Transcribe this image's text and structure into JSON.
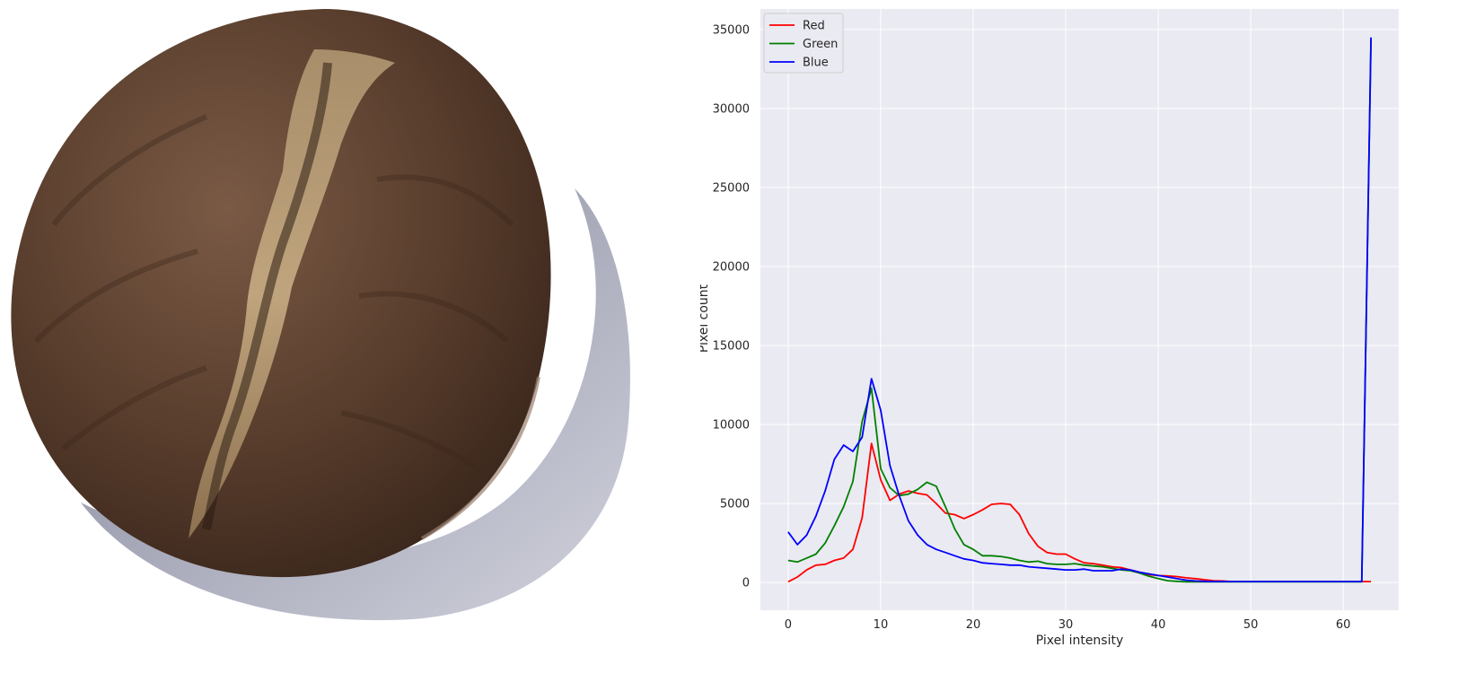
{
  "photo": {
    "subject_icon": "coffee-bean-photo"
  },
  "colors": {
    "axes_background": "#eaeaf2",
    "grid": "#ffffff",
    "red": "#ff0000",
    "green": "#008000",
    "blue": "#0000ff"
  },
  "chart_data": {
    "type": "line",
    "title": "",
    "xlabel": "Pixel intensity",
    "ylabel": "Pixel count",
    "xlim": [
      -3,
      66
    ],
    "ylim": [
      -1750,
      36300
    ],
    "xticks": [
      0,
      10,
      20,
      30,
      40,
      50,
      60
    ],
    "yticks": [
      0,
      5000,
      10000,
      15000,
      20000,
      25000,
      30000,
      35000
    ],
    "grid": true,
    "legend_position": "top-left",
    "x": [
      0,
      1,
      2,
      3,
      4,
      5,
      6,
      7,
      8,
      9,
      10,
      11,
      12,
      13,
      14,
      15,
      16,
      17,
      18,
      19,
      20,
      21,
      22,
      23,
      24,
      25,
      26,
      27,
      28,
      29,
      30,
      31,
      32,
      33,
      34,
      35,
      36,
      37,
      38,
      39,
      40,
      41,
      42,
      43,
      44,
      45,
      46,
      47,
      48,
      49,
      50,
      51,
      52,
      53,
      54,
      55,
      56,
      57,
      58,
      59,
      60,
      61,
      62,
      63
    ],
    "series": [
      {
        "name": "Red",
        "color": "#ff0000",
        "values": [
          50,
          350,
          800,
          1100,
          1150,
          1400,
          1550,
          2100,
          4100,
          8800,
          6500,
          5200,
          5600,
          5800,
          5650,
          5550,
          5000,
          4400,
          4300,
          4050,
          4300,
          4600,
          4950,
          5000,
          4950,
          4300,
          3100,
          2300,
          1900,
          1800,
          1800,
          1500,
          1250,
          1200,
          1100,
          1000,
          950,
          800,
          650,
          500,
          450,
          420,
          380,
          300,
          250,
          180,
          120,
          100,
          60,
          60,
          60,
          60,
          60,
          60,
          60,
          60,
          60,
          60,
          60,
          60,
          60,
          60,
          60,
          60
        ]
      },
      {
        "name": "Green",
        "color": "#008000",
        "values": [
          1400,
          1300,
          1550,
          1800,
          2500,
          3600,
          4800,
          6400,
          10200,
          12300,
          7200,
          6000,
          5500,
          5600,
          5900,
          6350,
          6100,
          4800,
          3400,
          2400,
          2100,
          1700,
          1700,
          1650,
          1550,
          1400,
          1300,
          1350,
          1200,
          1150,
          1150,
          1200,
          1100,
          1050,
          1000,
          900,
          800,
          750,
          600,
          400,
          250,
          120,
          80,
          50,
          50,
          50,
          50,
          50,
          50,
          50,
          50,
          50,
          50,
          50,
          50,
          50,
          50,
          50,
          50,
          50,
          50,
          50,
          50,
          34400
        ]
      },
      {
        "name": "Blue",
        "color": "#0000ff",
        "values": [
          3200,
          2400,
          3000,
          4200,
          5800,
          7800,
          8700,
          8300,
          9200,
          12900,
          10900,
          7400,
          5500,
          3900,
          3000,
          2400,
          2100,
          1900,
          1700,
          1500,
          1400,
          1250,
          1200,
          1150,
          1100,
          1100,
          1000,
          950,
          900,
          850,
          800,
          800,
          850,
          750,
          750,
          750,
          850,
          800,
          650,
          550,
          450,
          350,
          250,
          150,
          100,
          80,
          60,
          60,
          60,
          60,
          60,
          60,
          60,
          60,
          60,
          60,
          60,
          60,
          60,
          60,
          60,
          60,
          60,
          34500
        ]
      }
    ]
  }
}
